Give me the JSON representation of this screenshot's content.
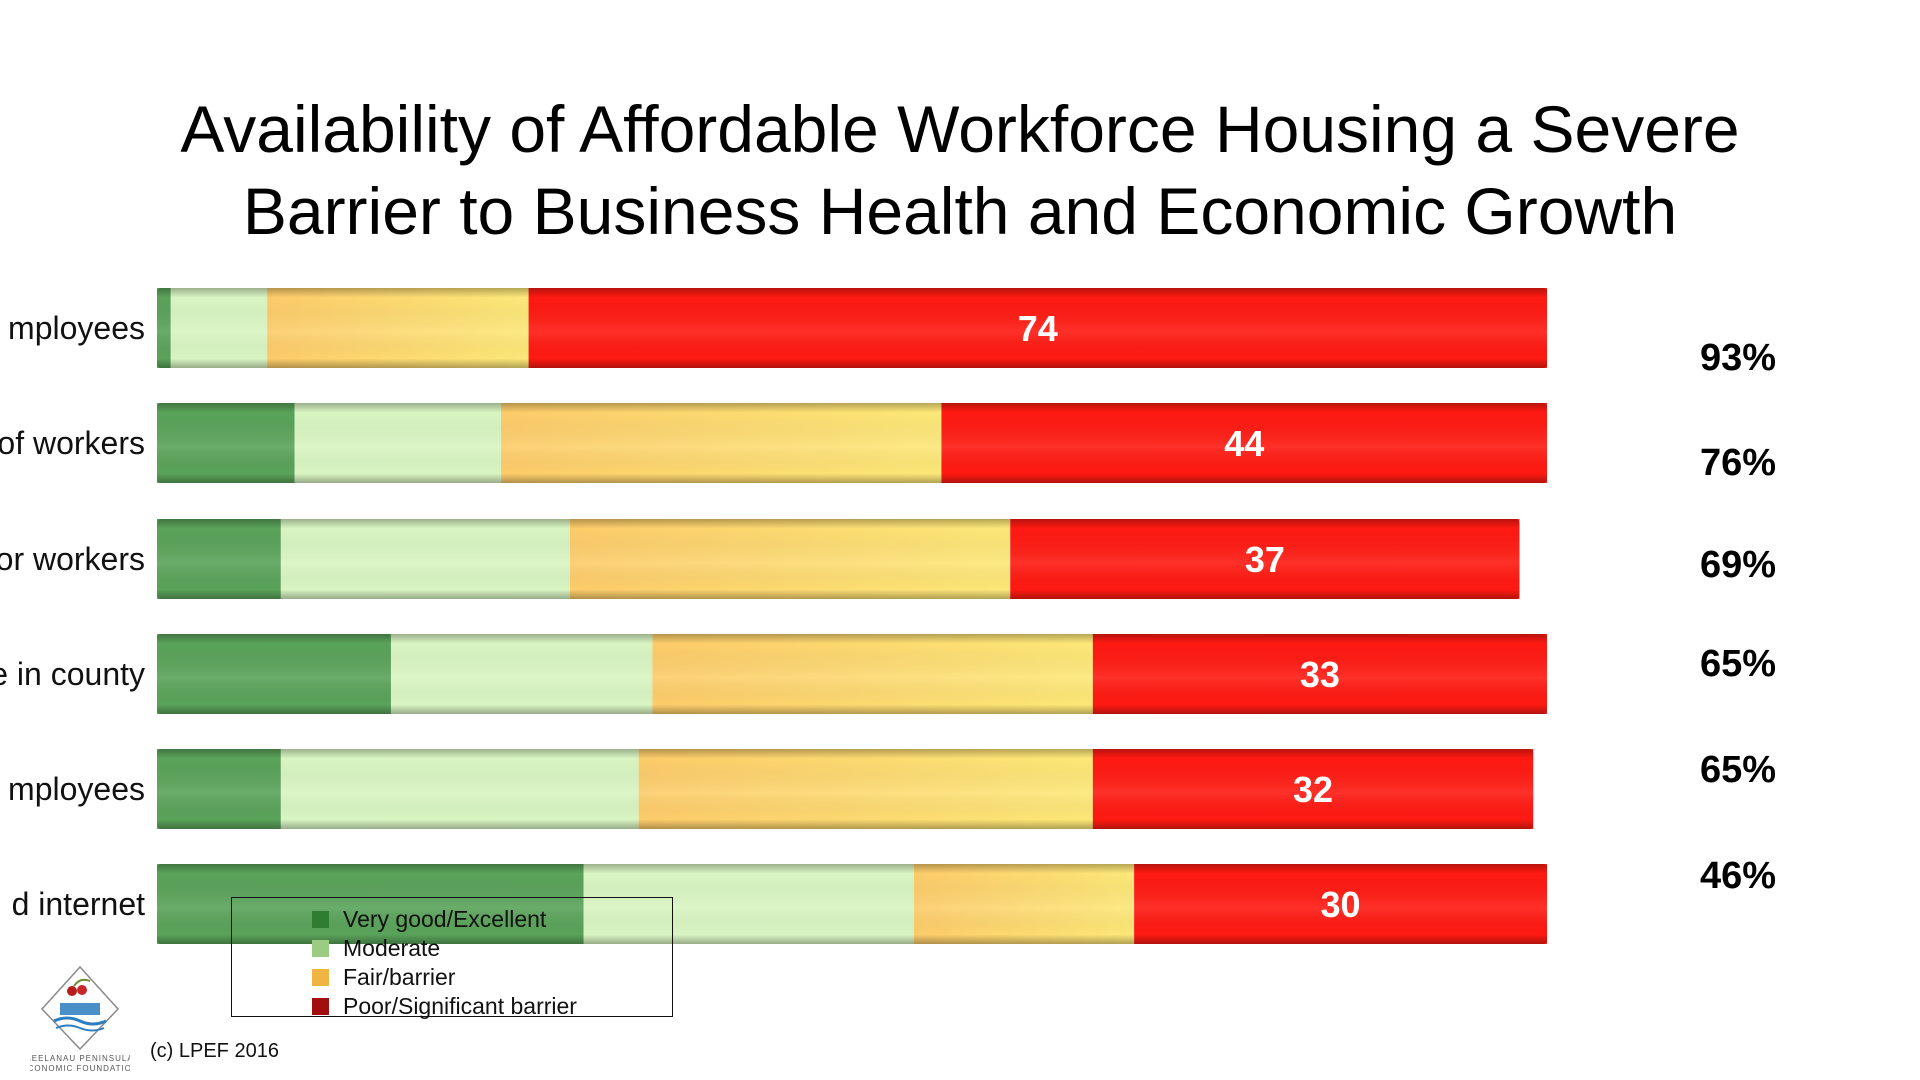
{
  "colors": {
    "very_good": "#5aa35a",
    "moderate": "#d9f5c2",
    "fair": "#fcd370",
    "poor": "#ff1a12",
    "legend_very_good": "#2e7d32",
    "legend_moderate": "#9ccc82",
    "legend_fair": "#f0b443",
    "legend_poor": "#a10e0e"
  },
  "chart_data": {
    "type": "bar",
    "orientation": "horizontal",
    "stacked": true,
    "title_lines": [
      "Availability of Affordable Workforce Housing a Severe",
      "Barrier to Business Health and Economic Growth"
    ],
    "categories": [
      "mployees",
      "of workers",
      "or workers",
      "e in county",
      "mployees",
      "d internet"
    ],
    "series": [
      {
        "name": "Very good/Excellent",
        "values": [
          1,
          10,
          9,
          17,
          9,
          31
        ]
      },
      {
        "name": "Moderate",
        "values": [
          7,
          15,
          21,
          19,
          26,
          24
        ]
      },
      {
        "name": "Fair/barrier",
        "values": [
          19,
          32,
          32,
          32,
          33,
          16
        ]
      },
      {
        "name": "Poor/Significant barrier",
        "values": [
          74,
          44,
          37,
          33,
          32,
          30
        ]
      }
    ],
    "bar_labels": [
      "74",
      "44",
      "37",
      "33",
      "32",
      "30"
    ],
    "right_labels": [
      "93%",
      "76%",
      "69%",
      "65%",
      "65%",
      "46%"
    ],
    "legend": {
      "items": [
        "Very good/Excellent",
        "Moderate",
        "Fair/barrier",
        "Poor/Significant barrier"
      ],
      "position": "bottom-left"
    },
    "xlim": [
      0,
      101
    ]
  },
  "legend": {
    "items": [
      {
        "label": "Very good/Excellent",
        "color_key": "legend_very_good"
      },
      {
        "label": "Moderate",
        "color_key": "legend_moderate"
      },
      {
        "label": "Fair/barrier",
        "color_key": "legend_fair"
      },
      {
        "label": "Poor/Significant barrier",
        "color_key": "legend_poor"
      }
    ]
  },
  "footer": {
    "copyright": "(c) LPEF 2016",
    "logo_line1": "LEELANAU PENINSULA",
    "logo_line2": "ECONOMIC FOUNDATION"
  }
}
